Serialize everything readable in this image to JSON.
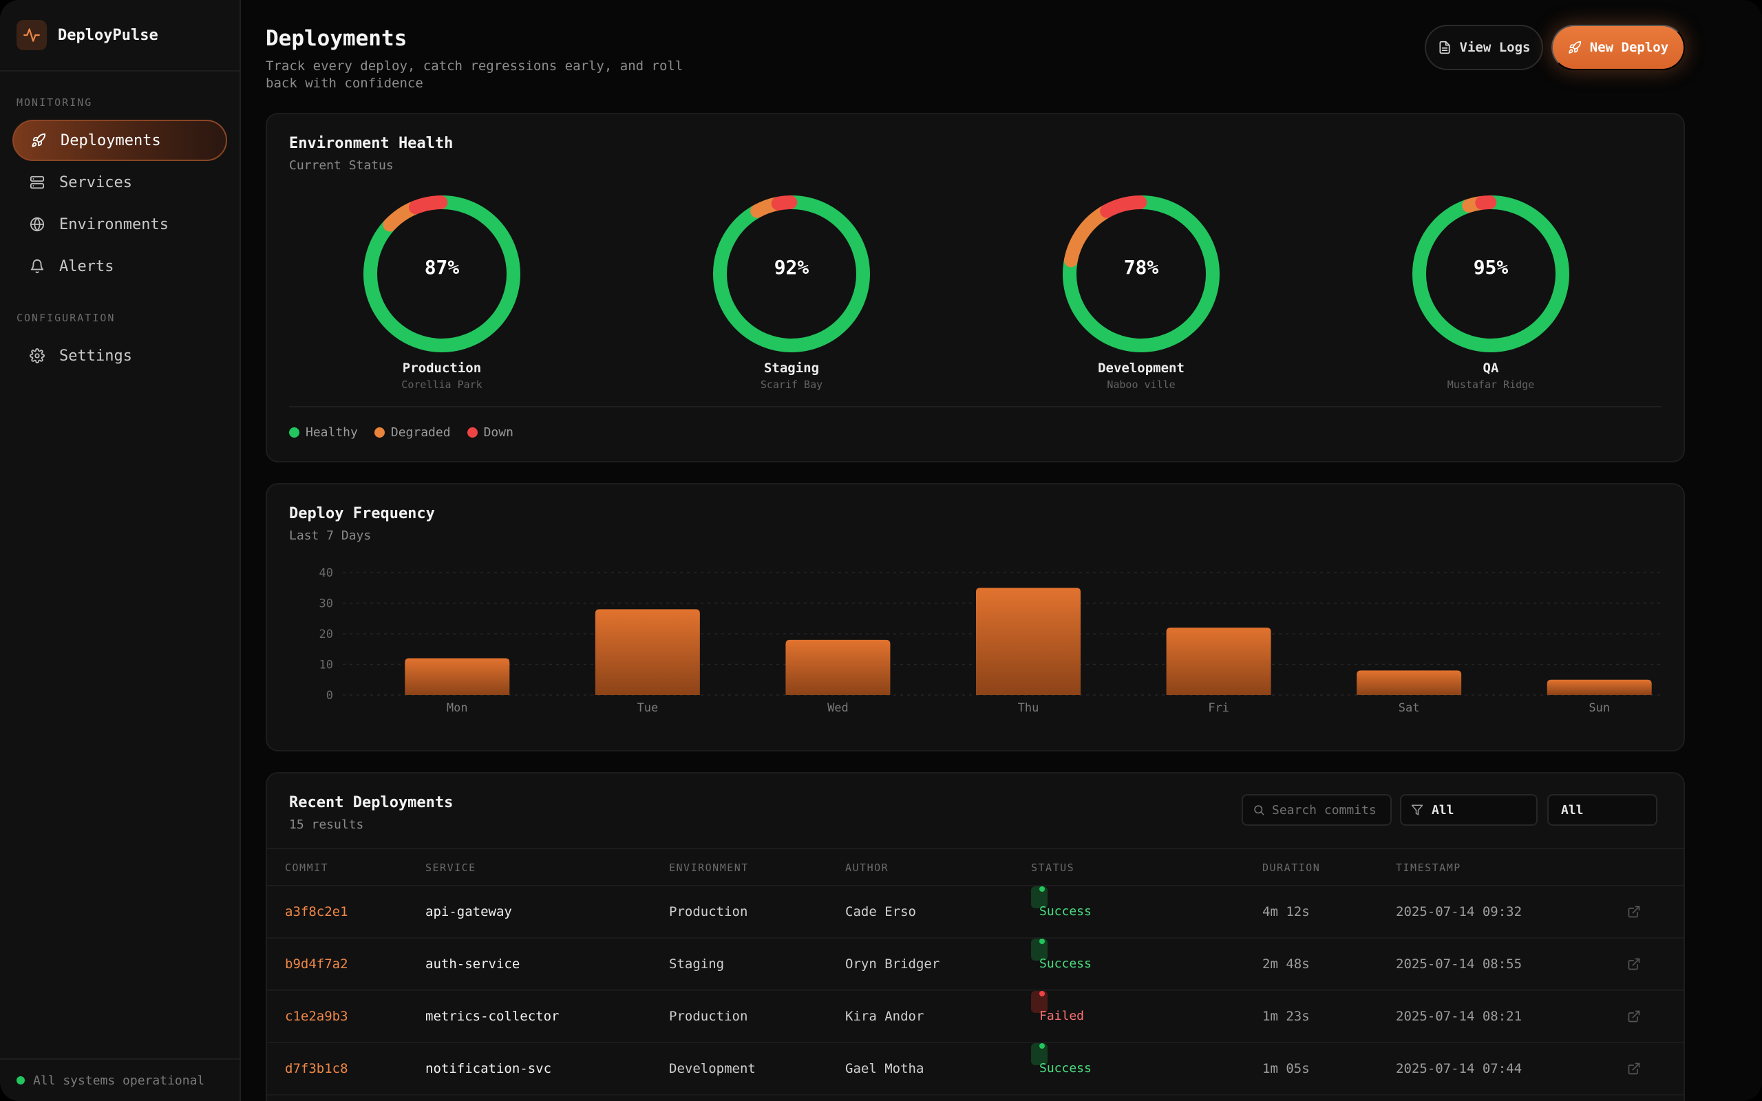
{
  "app": {
    "name": "DeployPulse",
    "footer_status": "All systems operational"
  },
  "sidebar": {
    "sections": [
      {
        "label": "MONITORING",
        "items": [
          {
            "label": "Deployments",
            "icon": "rocket-icon",
            "active": true
          },
          {
            "label": "Services",
            "icon": "server-icon"
          },
          {
            "label": "Environments",
            "icon": "globe-icon"
          },
          {
            "label": "Alerts",
            "icon": "bell-icon"
          }
        ]
      },
      {
        "label": "CONFIGURATION",
        "items": [
          {
            "label": "Settings",
            "icon": "gear-icon"
          }
        ]
      }
    ]
  },
  "header": {
    "title": "Deployments",
    "subtitle": "Track every deploy, catch regressions early, and roll back with confidence",
    "view_logs": "View Logs",
    "new_deploy": "New Deploy"
  },
  "health": {
    "title": "Environment Health",
    "subtitle": "Current Status",
    "environments": [
      {
        "name": "Production",
        "location": "Corellia Park",
        "percent": "87%",
        "healthy": 0.87,
        "degraded": 0.07,
        "down": 0.06
      },
      {
        "name": "Staging",
        "location": "Scarif Bay",
        "percent": "92%",
        "healthy": 0.92,
        "degraded": 0.05,
        "down": 0.03
      },
      {
        "name": "Development",
        "location": "Naboo ville",
        "percent": "78%",
        "healthy": 0.78,
        "degraded": 0.14,
        "down": 0.08
      },
      {
        "name": "QA",
        "location": "Mustafar Ridge",
        "percent": "95%",
        "healthy": 0.95,
        "degraded": 0.03,
        "down": 0.02
      }
    ],
    "legend": {
      "healthy": "Healthy",
      "degraded": "Degraded",
      "down": "Down"
    },
    "colors": {
      "healthy": "#22c55e",
      "degraded": "#e8843c",
      "down": "#ef4444"
    }
  },
  "frequency": {
    "title": "Deploy Frequency",
    "subtitle": "Last 7 Days"
  },
  "chart_data": {
    "type": "bar",
    "categories": [
      "Mon",
      "Tue",
      "Wed",
      "Thu",
      "Fri",
      "Sat",
      "Sun"
    ],
    "values": [
      12,
      28,
      18,
      35,
      22,
      8,
      5
    ],
    "ylim": [
      0,
      40
    ],
    "yticks": [
      0,
      10,
      20,
      30,
      40
    ],
    "grid": true,
    "color": "#e8843c"
  },
  "recent": {
    "title": "Recent Deployments",
    "count": "15 results",
    "search_placeholder": "Search commits",
    "filter_env": "All",
    "filter_status": "All",
    "columns": [
      "COMMIT",
      "SERVICE",
      "ENVIRONMENT",
      "AUTHOR",
      "STATUS",
      "DURATION",
      "TIMESTAMP"
    ],
    "rows": [
      {
        "commit": "a3f8c2e1",
        "service": "api-gateway",
        "env": "Production",
        "author": "Cade Erso",
        "status": "Success",
        "duration": "4m 12s",
        "time": "2025-07-14 09:32"
      },
      {
        "commit": "b9d4f7a2",
        "service": "auth-service",
        "env": "Staging",
        "author": "Oryn Bridger",
        "status": "Success",
        "duration": "2m 48s",
        "time": "2025-07-14 08:55"
      },
      {
        "commit": "c1e2a9b3",
        "service": "metrics-collector",
        "env": "Production",
        "author": "Kira Andor",
        "status": "Failed",
        "duration": "1m 23s",
        "time": "2025-07-14 08:21"
      },
      {
        "commit": "d7f3b1c8",
        "service": "notification-svc",
        "env": "Development",
        "author": "Gael Motha",
        "status": "Success",
        "duration": "1m 05s",
        "time": "2025-07-14 07:44"
      }
    ]
  }
}
